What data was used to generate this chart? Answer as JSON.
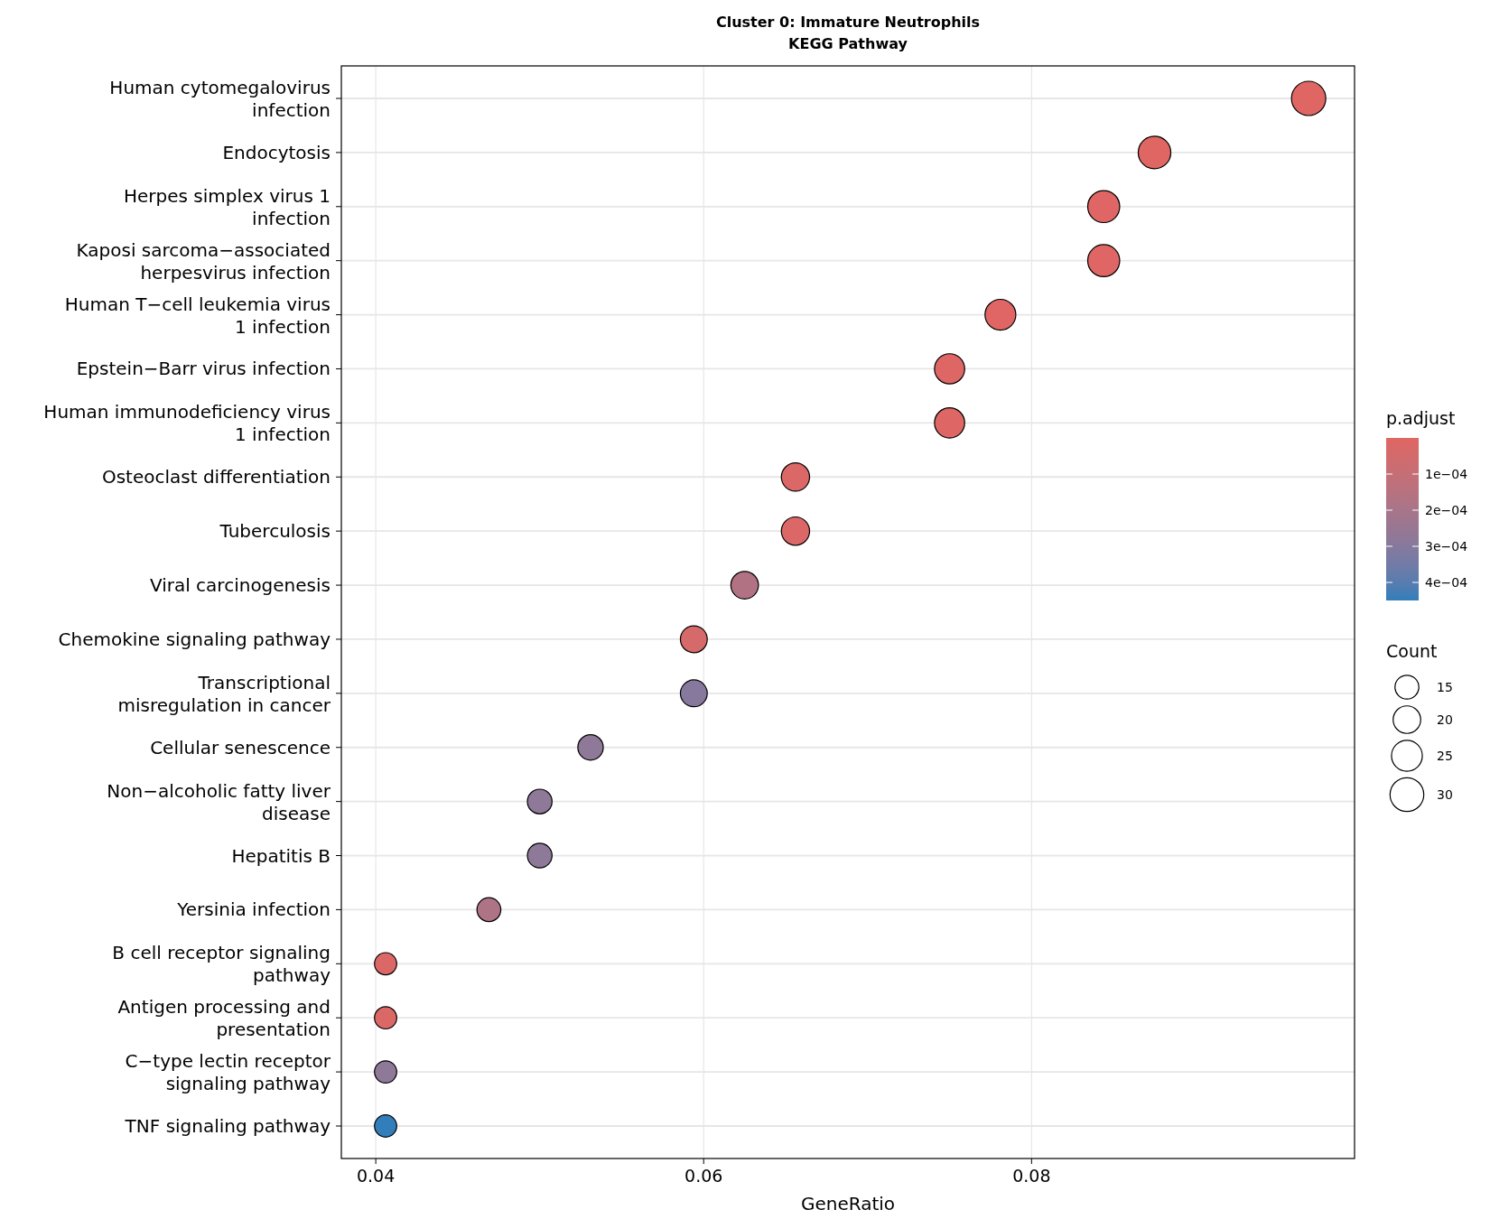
{
  "chart_data": {
    "type": "bubble",
    "orientation": "horizontal",
    "title": "Cluster 0: Immature Neutrophils",
    "subtitle": "KEGG Pathway",
    "xlabel": "GeneRatio",
    "clabel": "p.adjust",
    "legend_title": "Count",
    "grid": true,
    "categories": [
      "Human cytomegalovirus infection",
      "Endocytosis",
      "Herpes simplex virus 1 infection",
      "Kaposi sarcoma−associated herpesvirus infection",
      "Human T−cell leukemia virus 1 infection",
      "Epstein−Barr virus infection",
      "Human immunodeficiency virus 1 infection",
      "Osteoclast differentiation",
      "Tuberculosis",
      "Viral carcinogenesis",
      "Chemokine signaling pathway",
      "Transcriptional misregulation in cancer",
      "Cellular senescence",
      "Non−alcoholic fatty liver disease",
      "Hepatitis B",
      "Yersinia infection",
      "B cell receptor signaling pathway",
      "Antigen processing and presentation",
      "C−type lectin receptor signaling pathway",
      "TNF signaling pathway"
    ],
    "values": [
      0.0969,
      0.0875,
      0.0844,
      0.0844,
      0.0781,
      0.075,
      0.075,
      0.0656,
      0.0656,
      0.0625,
      0.0594,
      0.0594,
      0.0531,
      0.05,
      0.05,
      0.0469,
      0.0406,
      0.0406,
      0.0406,
      0.0406
    ],
    "sizes": [
      31,
      28,
      27,
      27,
      25,
      24,
      24,
      21,
      21,
      20,
      19,
      19,
      17,
      16,
      16,
      15,
      13,
      13,
      13,
      13
    ],
    "cvalues": [
      1e-06,
      2e-06,
      3e-06,
      3e-06,
      5e-06,
      8e-06,
      8e-06,
      2e-05,
      2e-05,
      0.00017,
      4e-05,
      0.0003,
      0.00028,
      0.00028,
      0.00028,
      0.00018,
      2e-05,
      2e-05,
      0.00028,
      0.00045
    ],
    "size_legend": [
      15,
      20,
      25,
      30
    ],
    "xlim": [
      0.0379,
      0.0997
    ],
    "xticks": [
      0.04,
      0.06,
      0.08
    ],
    "clim": [
      0,
      0.00045
    ],
    "cticks": [
      {
        "value": 0.0001,
        "label": "1e−04"
      },
      {
        "value": 0.0002,
        "label": "2e−04"
      },
      {
        "value": 0.0003,
        "label": "3e−04"
      },
      {
        "value": 0.0004,
        "label": "4e−04"
      }
    ]
  }
}
